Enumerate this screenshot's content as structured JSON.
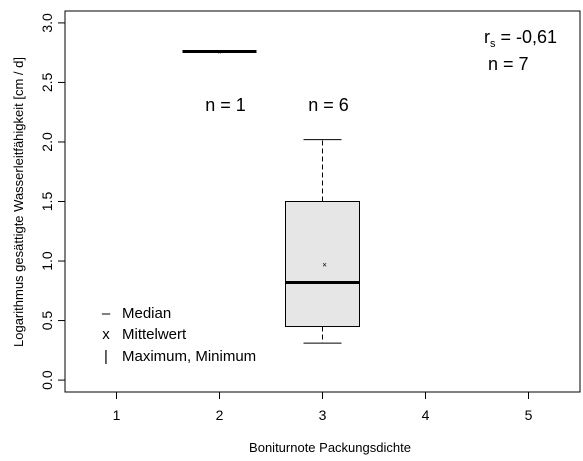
{
  "chart_data": {
    "type": "boxplot",
    "xlabel": "Boniturnote Packungsdichte",
    "ylabel": "Logarithmus gesättigte Wasserleitfähigkeit [cm / d]",
    "xlim": [
      0.5,
      5.5
    ],
    "ylim": [
      -0.1,
      3.1
    ],
    "x_ticks": [
      "1",
      "2",
      "3",
      "4",
      "5"
    ],
    "y_ticks": [
      "0.0",
      "0.5",
      "1.0",
      "1.5",
      "2.0",
      "2.5",
      "3.0"
    ],
    "y_tick_values": [
      0,
      0.5,
      1.0,
      1.5,
      2.0,
      2.5,
      3.0
    ],
    "boxes": [
      {
        "x": 2,
        "min": 2.76,
        "q1": 2.76,
        "median": 2.76,
        "q3": 2.76,
        "max": 2.76,
        "mean": 2.76,
        "n_label": "n = 1"
      },
      {
        "x": 3,
        "min": 0.31,
        "q1": 0.45,
        "median": 0.82,
        "q3": 1.5,
        "max": 2.02,
        "mean": 0.97,
        "n_label": "n = 6"
      }
    ],
    "stats": {
      "rs_symbol": "r",
      "rs_sub": "s",
      "rs_value": " = -0,61",
      "n_total": "n = 7"
    },
    "legend": [
      {
        "symbol": "–",
        "label": "Median"
      },
      {
        "symbol": "x",
        "label": "Mittelwert"
      },
      {
        "symbol": "|",
        "label": "Maximum, Minimum"
      }
    ],
    "colors": {
      "box_fill": "#e6e6e6",
      "stroke": "#000000"
    }
  }
}
